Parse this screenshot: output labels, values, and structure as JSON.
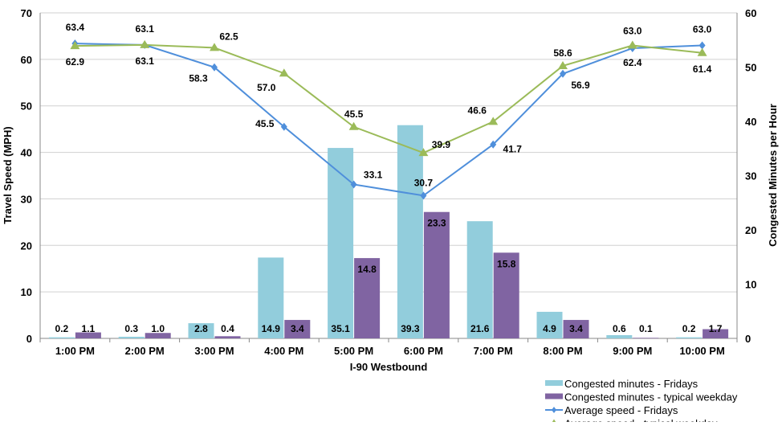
{
  "chart_data": {
    "type": "bar+line",
    "title": "",
    "xlabel": "I-90 Westbound",
    "ylabel": "Travel Speed (MPH)",
    "y2label": "Congested Minutes per Hour",
    "ylim": [
      0,
      70
    ],
    "y2lim": [
      0,
      60
    ],
    "yticks": [
      "0",
      "10",
      "20",
      "30",
      "40",
      "50",
      "60",
      "70"
    ],
    "y2ticks": [
      "0",
      "10",
      "20",
      "30",
      "40",
      "50",
      "60"
    ],
    "grid": true,
    "legend_position": "bottom-right",
    "categories": [
      "1:00 PM",
      "2:00 PM",
      "3:00 PM",
      "4:00 PM",
      "5:00 PM",
      "6:00 PM",
      "7:00 PM",
      "8:00 PM",
      "9:00 PM",
      "10:00 PM"
    ],
    "series": [
      {
        "name": "Congested minutes - Fridays",
        "type": "bar",
        "axis": "right",
        "color": "#92CDDC",
        "values": [
          0.2,
          0.3,
          2.8,
          14.9,
          35.1,
          39.3,
          21.6,
          4.9,
          0.6,
          0.2
        ]
      },
      {
        "name": "Congested minutes - typical weekday",
        "type": "bar",
        "axis": "right",
        "color": "#8064A2",
        "values": [
          1.1,
          1.0,
          0.4,
          3.4,
          14.8,
          23.3,
          15.8,
          3.4,
          0.1,
          1.7
        ]
      },
      {
        "name": "Average speed - Fridays",
        "type": "line",
        "axis": "left",
        "marker": "diamond",
        "color": "#4F8FDB",
        "values": [
          63.4,
          63.1,
          58.3,
          45.5,
          33.1,
          30.7,
          41.7,
          56.9,
          62.4,
          63.0
        ]
      },
      {
        "name": "Average speed - typical weekday",
        "type": "line",
        "axis": "left",
        "marker": "triangle",
        "color": "#9BBB59",
        "values": [
          62.9,
          63.1,
          62.5,
          57.0,
          45.5,
          39.9,
          46.6,
          58.6,
          63.0,
          61.4
        ]
      }
    ]
  }
}
